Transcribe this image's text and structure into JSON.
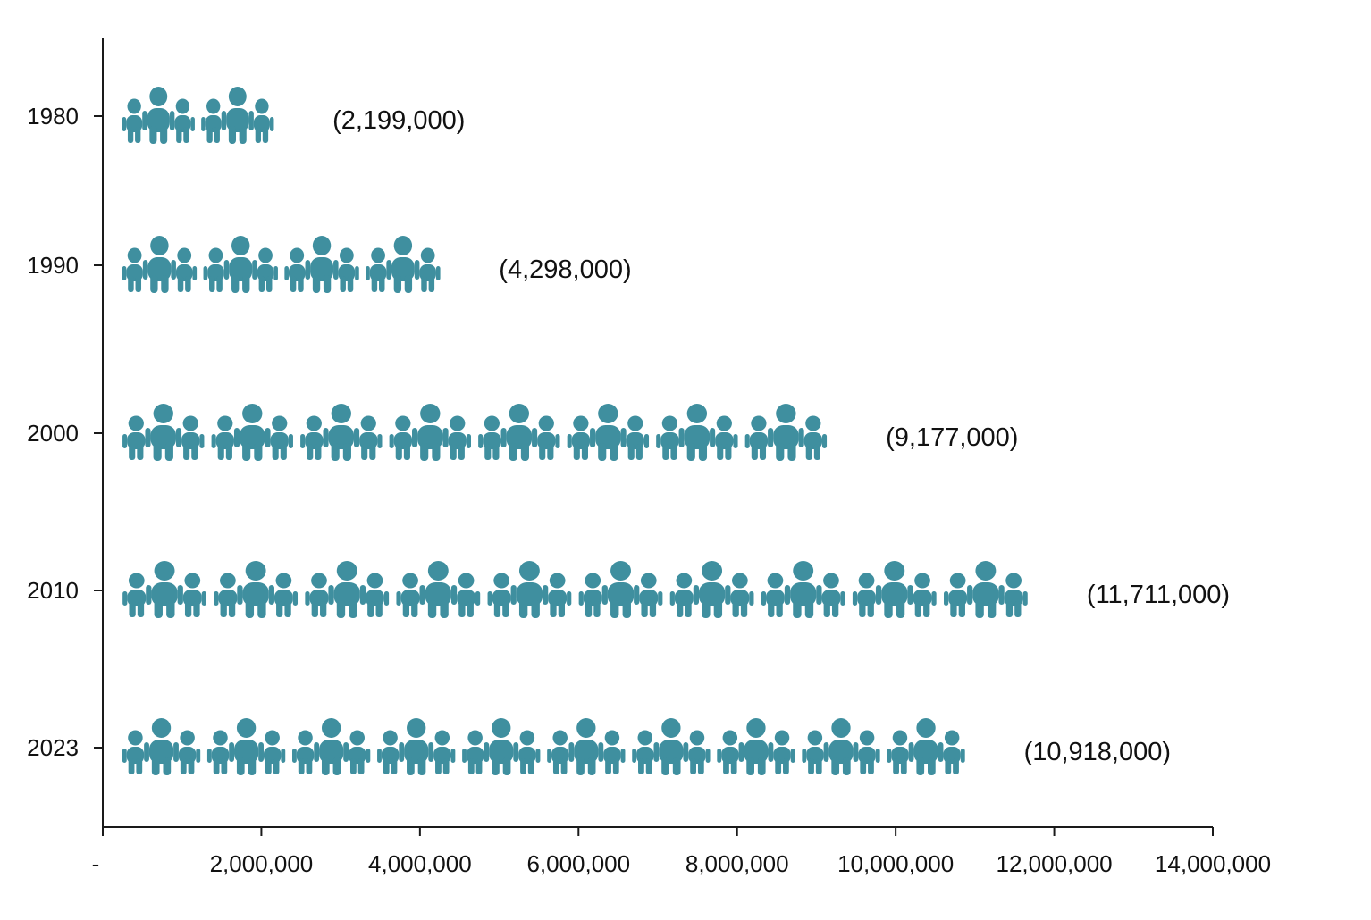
{
  "chart_data": {
    "type": "bar",
    "style": "pictograph",
    "orientation": "horizontal",
    "categories": [
      "1980",
      "1990",
      "2000",
      "2010",
      "2023"
    ],
    "values": [
      2199000,
      4298000,
      9177000,
      11711000,
      10918000
    ],
    "value_labels": [
      "(2,199,000)",
      "(4,298,000)",
      "(9,177,000)",
      "(11,711,000)",
      "(10,918,000)"
    ],
    "xlim": [
      0,
      14000000
    ],
    "x_ticks": [
      0,
      2000000,
      4000000,
      6000000,
      8000000,
      10000000,
      12000000,
      14000000
    ],
    "x_tick_labels": [
      "-",
      "2,000,000",
      "4,000,000",
      "6,000,000",
      "8,000,000",
      "10,000,000",
      "12,000,000",
      "14,000,000"
    ],
    "icon": "people-group-icon",
    "icon_color": "#3f8f9f",
    "title": "",
    "xlabel": "",
    "ylabel": "",
    "grid": false,
    "legend": "none"
  }
}
